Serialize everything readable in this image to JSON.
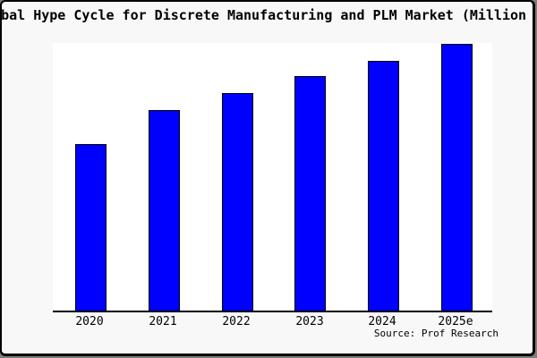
{
  "page": {
    "outer_background": "#7d7d7d",
    "card_background": "#f8f8f8",
    "plot_background": "#ffffff",
    "text_color": "#000000"
  },
  "chart_data": {
    "type": "bar",
    "title": "Global Hype Cycle for Discrete Manufacturing and PLM Market (Million USD)",
    "title_visible_clipped": "bal Hype Cycle for Discrete Manufacturing and PLM Market (Million U",
    "categories": [
      "2020",
      "2021",
      "2022",
      "2023",
      "2024",
      "2025e"
    ],
    "values": [
      62,
      74.5,
      81,
      87.2,
      93,
      99.3
    ],
    "values_note": "y-axis has no labels or ticks; values are relative heights (tallest bar = 99.3 of ylim 100)",
    "xlabel": "",
    "ylabel": "",
    "ylim": [
      0,
      100
    ],
    "grid": false,
    "legend": null,
    "bar_color": "#0000ff",
    "bar_border_color": "#000000",
    "axis_line_color": "#000000",
    "source": "Source: Prof Research"
  }
}
